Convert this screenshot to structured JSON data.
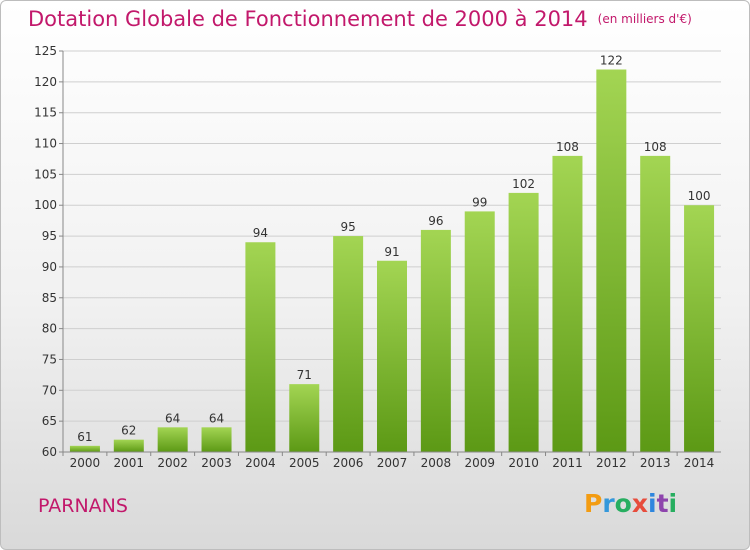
{
  "header": {
    "title": "Dotation Globale de Fonctionnement de 2000 à 2014",
    "subtitle": "(en milliers d'€)"
  },
  "commune": "PARNANS",
  "logo": {
    "text": "Proxiti"
  },
  "colors": {
    "title": "#c2186b",
    "bar_light": "#9ed14b",
    "bar_dark": "#5e9a17"
  },
  "chart_data": {
    "type": "bar",
    "title": "Dotation Globale de Fonctionnement de 2000 à 2014",
    "subtitle": "(en milliers d'€)",
    "categories": [
      "2000",
      "2001",
      "2002",
      "2003",
      "2004",
      "2005",
      "2006",
      "2007",
      "2008",
      "2009",
      "2010",
      "2011",
      "2012",
      "2013",
      "2014"
    ],
    "values": [
      61,
      62,
      64,
      64,
      94,
      71,
      95,
      91,
      96,
      99,
      102,
      108,
      122,
      108,
      100
    ],
    "ylim": [
      60,
      125
    ],
    "yticks": [
      60,
      65,
      70,
      75,
      80,
      85,
      90,
      95,
      100,
      105,
      110,
      115,
      120,
      125
    ],
    "grid": true,
    "legend": "none"
  }
}
